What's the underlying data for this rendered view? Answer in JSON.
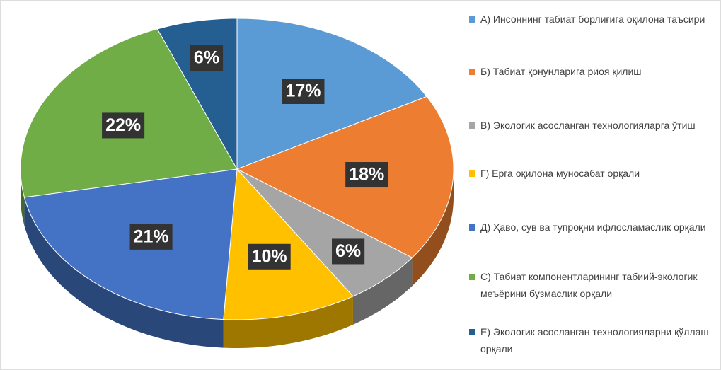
{
  "chart_data": {
    "type": "pie",
    "categories": [
      "А) Инсоннинг табиат борлиғига оқилона таъсири",
      "Б) Табиат қонунларига  риоя қилиш",
      "В) Экологик асосланган технологияларга ўтиш",
      "Г) Ерга оқилона муносабат  орқали",
      "Д) Ҳаво, сув ва тупроқни ифлосламаслик орқали",
      "С) Табиат компонентларининг табиий-экологик меъёрини бузмаслик орқали",
      "Е) Экологик асосланган технологияларни қўллаш орқали"
    ],
    "values": [
      17,
      18,
      6,
      10,
      21,
      22,
      6
    ],
    "value_labels": [
      "17%",
      "18%",
      "6%",
      "10%",
      "21%",
      "22%",
      "6%"
    ],
    "colors": [
      "#5b9bd5",
      "#ed7d31",
      "#a5a5a5",
      "#ffc000",
      "#4472c4",
      "#70ad47",
      "#255e91"
    ],
    "legend": "right"
  }
}
